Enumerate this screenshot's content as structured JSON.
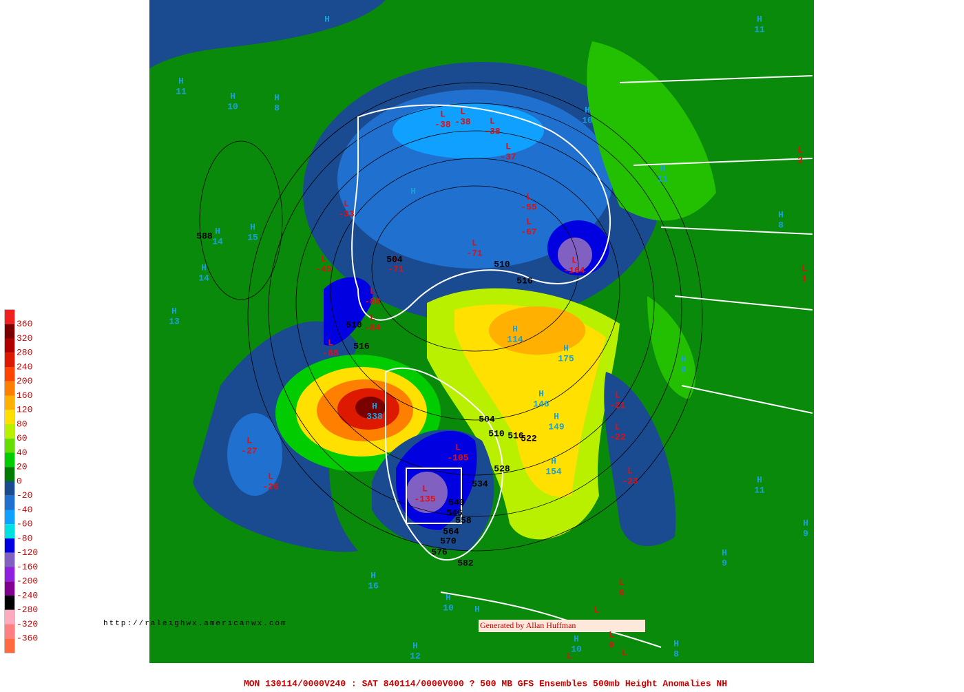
{
  "map": {
    "footer": "MON 130114/0000V240 : SAT 840114/0000V000  ? 500 MB GFS Ensembles 500mb Height Anomalies NH",
    "url": "http://raleighwx.americanwx.com",
    "credit": "Generated by Allan Huffman",
    "legend": {
      "labels": [
        360,
        320,
        280,
        240,
        200,
        160,
        120,
        80,
        60,
        40,
        20,
        0,
        -20,
        -40,
        -60,
        -80,
        -120,
        -160,
        -200,
        -240,
        -280,
        -320,
        -360
      ],
      "colors": [
        "#ee2020",
        "#7a0000",
        "#b00000",
        "#dd1a00",
        "#ff4400",
        "#ff7f00",
        "#ffb000",
        "#ffe000",
        "#b8f000",
        "#66dd00",
        "#00cc00",
        "#007a00",
        "#1a4a90",
        "#2070d0",
        "#10a0ff",
        "#00e0e0",
        "#0000e0",
        "#8060c0",
        "#9020e0",
        "#800090",
        "#000000",
        "#ffaac0",
        "#ff8080",
        "#ff6a40"
      ]
    },
    "centers": [
      {
        "letter": "H"
      },
      {
        "letter": "H",
        "value": 11
      },
      {
        "letter": "H",
        "value": 11
      },
      {
        "letter": "H",
        "value": 10
      },
      {
        "letter": "H",
        "value": 8
      },
      {
        "letter": "H",
        "value": 10
      },
      {
        "letter": "H",
        "value": 11
      },
      {
        "letter": "H"
      },
      {
        "letter": "H",
        "value": 8
      },
      {
        "letter": "H",
        "value": 14
      },
      {
        "letter": "H",
        "value": 15
      },
      {
        "letter": "H",
        "value": 14
      },
      {
        "letter": "H",
        "value": 13
      },
      {
        "letter": "H",
        "value": 114
      },
      {
        "letter": "H",
        "value": 175
      },
      {
        "letter": "H",
        "value": 8
      },
      {
        "letter": "H",
        "value": 338
      },
      {
        "letter": "H",
        "value": 146
      },
      {
        "letter": "H",
        "value": 149
      },
      {
        "letter": "H",
        "value": 154
      },
      {
        "letter": "H",
        "value": 11
      },
      {
        "letter": "H",
        "value": 9
      },
      {
        "letter": "H",
        "value": 9
      },
      {
        "letter": "H",
        "value": 16
      },
      {
        "letter": "H",
        "value": 10
      },
      {
        "letter": "H"
      },
      {
        "letter": "H",
        "value": 12
      },
      {
        "letter": "H",
        "value": 10
      },
      {
        "letter": "H",
        "value": 8
      },
      {
        "letter": "L",
        "value": -38
      },
      {
        "letter": "L",
        "value": -38
      },
      {
        "letter": "L",
        "value": -38
      },
      {
        "letter": "L",
        "value": -37
      },
      {
        "letter": "L",
        "value": 2
      },
      {
        "letter": "L",
        "value": -55
      },
      {
        "letter": "L",
        "value": -33
      },
      {
        "letter": "L",
        "value": -67
      },
      {
        "letter": "L",
        "value": -71
      },
      {
        "letter": "L",
        "value": -71
      },
      {
        "letter": "L",
        "value": -45
      },
      {
        "letter": "L",
        "value": -164
      },
      {
        "letter": "L",
        "value": 1
      },
      {
        "letter": "L",
        "value": -88
      },
      {
        "letter": "L",
        "value": -84
      },
      {
        "letter": "L",
        "value": -88
      },
      {
        "letter": "L",
        "value": -21
      },
      {
        "letter": "L",
        "value": -22
      },
      {
        "letter": "L",
        "value": -27
      },
      {
        "letter": "L",
        "value": -105
      },
      {
        "letter": "L",
        "value": -26
      },
      {
        "letter": "L",
        "value": -23
      },
      {
        "letter": "L",
        "value": -135
      },
      {
        "letter": "L",
        "value": 6
      },
      {
        "letter": "L"
      },
      {
        "letter": "L",
        "value": 0
      },
      {
        "letter": "L"
      },
      {
        "letter": "L"
      }
    ],
    "contours": [
      588,
      504,
      510,
      516,
      510,
      516,
      504,
      510,
      516,
      522,
      528,
      534,
      540,
      546,
      558,
      564,
      570,
      576,
      582
    ]
  }
}
